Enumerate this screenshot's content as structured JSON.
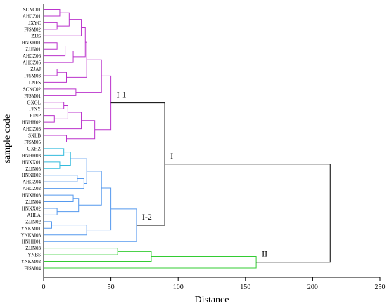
{
  "chart_data": {
    "type": "dendrogram",
    "xlabel": "Distance",
    "ylabel": "sample code",
    "xlim": [
      0,
      250
    ],
    "xticks": [
      0,
      50,
      100,
      150,
      200,
      250
    ],
    "xtick_labels": [
      "0",
      "50",
      "100",
      "150",
      "200",
      "250"
    ],
    "leaves": [
      {
        "name": "SCNC01",
        "color": "purple"
      },
      {
        "name": "AHCZ01",
        "color": "purple"
      },
      {
        "name": "JXYC",
        "color": "purple"
      },
      {
        "name": "FJSM02",
        "color": "purple"
      },
      {
        "name": "ZJJS",
        "color": "purple"
      },
      {
        "name": "HNXH01",
        "color": "purple"
      },
      {
        "name": "ZJJN01",
        "color": "purple"
      },
      {
        "name": "AHCZ06",
        "color": "purple"
      },
      {
        "name": "AHCZ05",
        "color": "purple"
      },
      {
        "name": "ZJAJ",
        "color": "purple"
      },
      {
        "name": "FJSM03",
        "color": "purple"
      },
      {
        "name": "LNFS",
        "color": "purple"
      },
      {
        "name": "SCNC02",
        "color": "purple"
      },
      {
        "name": "FJSM01",
        "color": "purple"
      },
      {
        "name": "GXGL",
        "color": "purple"
      },
      {
        "name": "FJNY",
        "color": "purple"
      },
      {
        "name": "FJNP",
        "color": "purple"
      },
      {
        "name": "HNHH02",
        "color": "purple"
      },
      {
        "name": "AHCZ03",
        "color": "purple"
      },
      {
        "name": "SXLB",
        "color": "purple"
      },
      {
        "name": "FJSM05",
        "color": "purple"
      },
      {
        "name": "GXHZ",
        "color": "cyan"
      },
      {
        "name": "HNHH03",
        "color": "cyan"
      },
      {
        "name": "HNXX01",
        "color": "cyan"
      },
      {
        "name": "ZJJN05",
        "color": "cyan"
      },
      {
        "name": "HNXH02",
        "color": "blue"
      },
      {
        "name": "AHCZ04",
        "color": "blue"
      },
      {
        "name": "AHCZ02",
        "color": "blue"
      },
      {
        "name": "HNXH03",
        "color": "blue"
      },
      {
        "name": "ZJJN04",
        "color": "blue"
      },
      {
        "name": "HNXX02",
        "color": "blue"
      },
      {
        "name": "AHLA",
        "color": "blue"
      },
      {
        "name": "ZJJN02",
        "color": "blue"
      },
      {
        "name": "YNKM01",
        "color": "blue"
      },
      {
        "name": "YNKM03",
        "color": "blue"
      },
      {
        "name": "HNHH01",
        "color": "blue"
      },
      {
        "name": "ZJJN03",
        "color": "green"
      },
      {
        "name": "YNBS",
        "color": "green"
      },
      {
        "name": "YNKM02",
        "color": "green"
      },
      {
        "name": "FJSM04",
        "color": "green"
      }
    ],
    "merges": [
      {
        "a": "L0",
        "b": "L1",
        "h": 12,
        "color": "purple"
      },
      {
        "a": "L2",
        "b": "L3",
        "h": 10,
        "color": "purple"
      },
      {
        "a": "n0",
        "b": "n1",
        "h": 19,
        "color": "purple"
      },
      {
        "a": "n2",
        "b": "L4",
        "h": 28,
        "color": "purple"
      },
      {
        "a": "L5",
        "b": "L6",
        "h": 10,
        "color": "purple"
      },
      {
        "a": "n4",
        "b": "L7",
        "h": 16,
        "color": "purple"
      },
      {
        "a": "n5",
        "b": "L8",
        "h": 22,
        "color": "purple"
      },
      {
        "a": "n3",
        "b": "n6",
        "h": 31,
        "color": "purple"
      },
      {
        "a": "L9",
        "b": "L10",
        "h": 10,
        "color": "purple"
      },
      {
        "a": "n8",
        "b": "L11",
        "h": 17,
        "color": "purple"
      },
      {
        "a": "n7",
        "b": "n9",
        "h": 32,
        "color": "purple"
      },
      {
        "a": "L12",
        "b": "L13",
        "h": 24,
        "color": "purple"
      },
      {
        "a": "n10",
        "b": "n11",
        "h": 43,
        "color": "purple"
      },
      {
        "a": "L14",
        "b": "L15",
        "h": 15,
        "color": "purple"
      },
      {
        "a": "L16",
        "b": "L17",
        "h": 8,
        "color": "purple"
      },
      {
        "a": "n13",
        "b": "n14",
        "h": 18,
        "color": "purple"
      },
      {
        "a": "n15",
        "b": "L18",
        "h": 28,
        "color": "purple"
      },
      {
        "a": "L19",
        "b": "L20",
        "h": 17,
        "color": "purple"
      },
      {
        "a": "n16",
        "b": "n17",
        "h": 38,
        "color": "purple"
      },
      {
        "a": "n12",
        "b": "n18",
        "h": 50,
        "color": "purple"
      },
      {
        "a": "L21",
        "b": "L22",
        "h": 15,
        "color": "cyan"
      },
      {
        "a": "L23",
        "b": "L24",
        "h": 12,
        "color": "cyan"
      },
      {
        "a": "n20",
        "b": "n21",
        "h": 20,
        "color": "cyan"
      },
      {
        "a": "L25",
        "b": "L26",
        "h": 25,
        "color": "blue"
      },
      {
        "a": "n23",
        "b": "L27",
        "h": 30,
        "color": "blue"
      },
      {
        "a": "n22",
        "b": "n24",
        "h": 32,
        "color": "blue"
      },
      {
        "a": "L28",
        "b": "L29",
        "h": 22,
        "color": "blue"
      },
      {
        "a": "L30",
        "b": "L31",
        "h": 10,
        "color": "blue"
      },
      {
        "a": "n26",
        "b": "n27",
        "h": 26,
        "color": "blue"
      },
      {
        "a": "n25",
        "b": "n28",
        "h": 43,
        "color": "blue"
      },
      {
        "a": "L32",
        "b": "L33",
        "h": 6,
        "color": "blue"
      },
      {
        "a": "n30",
        "b": "L34",
        "h": 32,
        "color": "blue"
      },
      {
        "a": "n29",
        "b": "n31",
        "h": 50,
        "color": "blue"
      },
      {
        "a": "n32",
        "b": "L35",
        "h": 69,
        "color": "blue"
      },
      {
        "a": "n19",
        "b": "n33",
        "h": 90,
        "color": "black"
      },
      {
        "a": "L36",
        "b": "L37",
        "h": 55,
        "color": "green"
      },
      {
        "a": "n35",
        "b": "L38",
        "h": 80,
        "color": "green"
      },
      {
        "a": "n36",
        "b": "L39",
        "h": 158,
        "color": "green"
      },
      {
        "a": "n34",
        "b": "n37",
        "h": 213,
        "color": "black"
      }
    ],
    "cluster_labels": [
      {
        "text": "I-1",
        "node": "n19"
      },
      {
        "text": "I-2",
        "node": "n33"
      },
      {
        "text": "I",
        "node": "n34"
      },
      {
        "text": "II",
        "node": "n37"
      }
    ],
    "colors": {
      "purple": "#bb33cc",
      "cyan": "#33bbdd",
      "blue": "#5599ee",
      "green": "#33cc33",
      "black": "#000000",
      "axis": "#000000"
    }
  }
}
